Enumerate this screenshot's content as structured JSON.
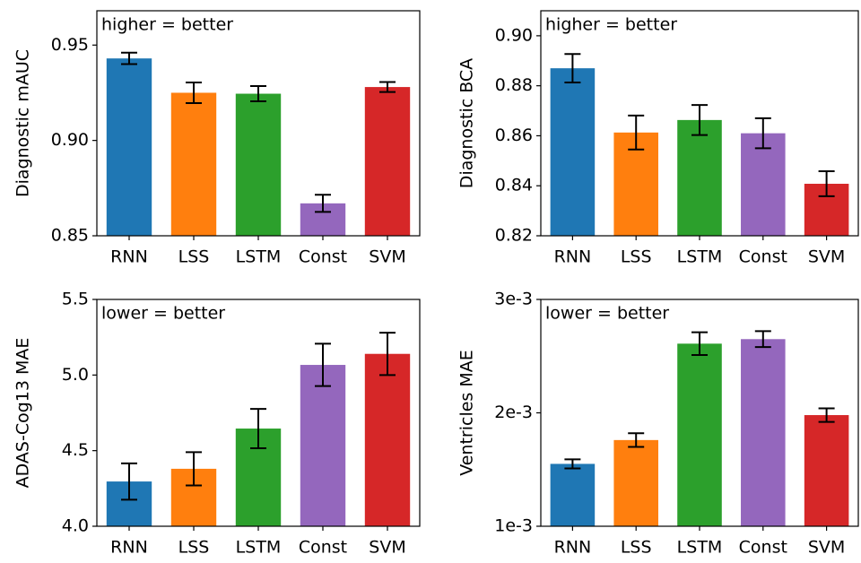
{
  "chart_data": [
    {
      "type": "bar",
      "y_label": "Diagnostic mAUC",
      "annotation": "higher = better",
      "categories": [
        "RNN",
        "LSS",
        "LSTM",
        "Const",
        "SVM"
      ],
      "values": [
        0.943,
        0.925,
        0.9245,
        0.867,
        0.928
      ],
      "errors": [
        0.003,
        0.0054,
        0.004,
        0.0045,
        0.0026
      ],
      "colors": [
        "#1f77b4",
        "#ff7f0e",
        "#2ca02c",
        "#9467bd",
        "#d62728"
      ],
      "ylim": [
        0.85,
        0.968
      ],
      "yticks": [
        {
          "value": 0.85,
          "label": "0.85"
        },
        {
          "value": 0.9,
          "label": "0.90"
        },
        {
          "value": 0.95,
          "label": "0.95"
        }
      ]
    },
    {
      "type": "bar",
      "y_label": "Diagnostic BCA",
      "annotation": "higher = better",
      "categories": [
        "RNN",
        "LSS",
        "LSTM",
        "Const",
        "SVM"
      ],
      "values": [
        0.887,
        0.8613,
        0.8663,
        0.861,
        0.8408
      ],
      "errors": [
        0.0057,
        0.0068,
        0.006,
        0.006,
        0.005
      ],
      "colors": [
        "#1f77b4",
        "#ff7f0e",
        "#2ca02c",
        "#9467bd",
        "#d62728"
      ],
      "ylim": [
        0.82,
        0.91
      ],
      "yticks": [
        0.82,
        0.84,
        0.86,
        0.88,
        {
          "value": 0.9,
          "label": "0.90"
        }
      ]
    },
    {
      "type": "bar",
      "y_label": "ADAS-Cog13 MAE",
      "annotation": "lower = better",
      "categories": [
        "RNN",
        "LSS",
        "LSTM",
        "Const",
        "SVM"
      ],
      "values": [
        4.296,
        4.38,
        4.646,
        5.067,
        5.14
      ],
      "errors": [
        0.12,
        0.11,
        0.13,
        0.14,
        0.14
      ],
      "colors": [
        "#1f77b4",
        "#ff7f0e",
        "#2ca02c",
        "#9467bd",
        "#d62728"
      ],
      "ylim": [
        4,
        5.5
      ],
      "yticks": [
        {
          "value": 4,
          "label": "4.0"
        },
        4.5,
        {
          "value": 5,
          "label": "5.0"
        },
        5.5
      ]
    },
    {
      "type": "bar",
      "y_label": "Ventricles MAE",
      "annotation": "lower = better",
      "categories": [
        "RNN",
        "LSS",
        "LSTM",
        "Const",
        "SVM"
      ],
      "values": [
        0.00155,
        0.00176,
        0.00261,
        0.00265,
        0.00198
      ],
      "errors": [
        4e-05,
        6e-05,
        0.0001,
        7e-05,
        6e-05
      ],
      "colors": [
        "#1f77b4",
        "#ff7f0e",
        "#2ca02c",
        "#9467bd",
        "#d62728"
      ],
      "ylim": [
        0.001,
        0.003
      ],
      "yticks": [
        {
          "value": 0.001,
          "label": "1e-3"
        },
        {
          "value": 0.002,
          "label": "2e-3"
        },
        {
          "value": 0.003,
          "label": "3e-3"
        }
      ]
    }
  ]
}
